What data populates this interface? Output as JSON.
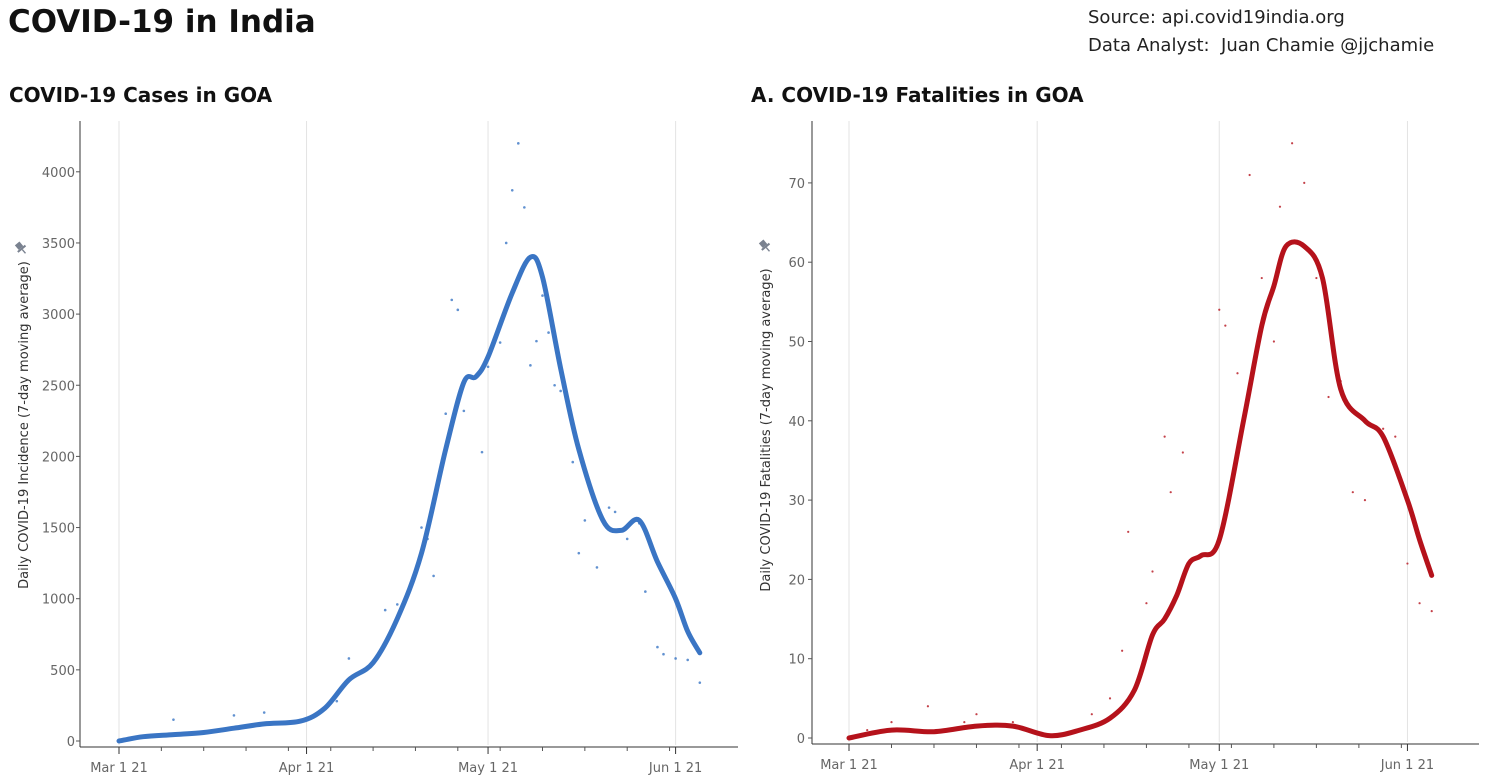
{
  "header": {
    "title": "COVID-19 in India",
    "source_line": "Source: api.covid19india.org",
    "analyst_line": "Data Analyst:  Juan Chamie @jjchamie"
  },
  "colors": {
    "cases": "#3a75c4",
    "fatalities": "#b5121b",
    "grid": "#e3e3e3"
  },
  "chart_data": [
    {
      "type": "line",
      "title": "COVID-19 Cases in GOA",
      "ylabel": "Daily COVID-19 Incidence (7-day moving average)",
      "xlabel": "",
      "x_ticks": [
        "Mar 1 21",
        "Apr 1 21",
        "May 1 21",
        "Jun 1 21"
      ],
      "y_ticks": [
        0,
        500,
        1000,
        1500,
        2000,
        2500,
        3000,
        3500,
        4000
      ],
      "xlim": [
        "2021-03-01",
        "2021-06-06"
      ],
      "ylim": [
        0,
        4300
      ],
      "grid": "vertical",
      "series": [
        {
          "style": "line",
          "x": [
            "2021-03-01",
            "2021-03-05",
            "2021-03-10",
            "2021-03-15",
            "2021-03-20",
            "2021-03-25",
            "2021-03-31",
            "2021-04-04",
            "2021-04-08",
            "2021-04-12",
            "2021-04-16",
            "2021-04-20",
            "2021-04-24",
            "2021-04-27",
            "2021-04-29",
            "2021-05-01",
            "2021-05-05",
            "2021-05-08",
            "2021-05-10",
            "2021-05-13",
            "2021-05-16",
            "2021-05-20",
            "2021-05-23",
            "2021-05-26",
            "2021-05-29",
            "2021-06-01",
            "2021-06-03",
            "2021-06-05"
          ],
          "y": [
            0,
            30,
            45,
            60,
            90,
            120,
            140,
            230,
            430,
            550,
            860,
            1320,
            2050,
            2520,
            2560,
            2700,
            3150,
            3400,
            3260,
            2620,
            2050,
            1550,
            1480,
            1550,
            1260,
            1000,
            770,
            620
          ]
        },
        {
          "style": "points",
          "x": [
            "2021-03-10",
            "2021-03-20",
            "2021-03-25",
            "2021-04-06",
            "2021-04-08",
            "2021-04-12",
            "2021-04-14",
            "2021-04-16",
            "2021-04-20",
            "2021-04-21",
            "2021-04-22",
            "2021-04-24",
            "2021-04-25",
            "2021-04-26",
            "2021-04-27",
            "2021-04-30",
            "2021-05-01",
            "2021-05-03",
            "2021-05-04",
            "2021-05-05",
            "2021-05-06",
            "2021-05-07",
            "2021-05-08",
            "2021-05-09",
            "2021-05-10",
            "2021-05-11",
            "2021-05-12",
            "2021-05-13",
            "2021-05-15",
            "2021-05-16",
            "2021-05-17",
            "2021-05-19",
            "2021-05-21",
            "2021-05-22",
            "2021-05-24",
            "2021-05-26",
            "2021-05-27",
            "2021-05-29",
            "2021-05-30",
            "2021-06-01",
            "2021-06-03",
            "2021-06-05"
          ],
          "y": [
            150,
            180,
            200,
            280,
            580,
            560,
            920,
            960,
            1500,
            1420,
            1160,
            2300,
            3100,
            3030,
            2320,
            2030,
            2630,
            2800,
            3500,
            3870,
            4200,
            3750,
            2640,
            2810,
            3130,
            2870,
            2500,
            2460,
            1960,
            1320,
            1550,
            1220,
            1640,
            1610,
            1420,
            1530,
            1050,
            660,
            610,
            580,
            570,
            410
          ]
        }
      ]
    },
    {
      "type": "line",
      "title": "A. COVID-19 Fatalities in GOA",
      "ylabel": "Daily COVID-19 Fatalities (7-day moving average)",
      "xlabel": "",
      "x_ticks": [
        "Mar 1 21",
        "Apr 1 21",
        "May 1 21",
        "Jun 1 21"
      ],
      "y_ticks": [
        0,
        10,
        20,
        30,
        40,
        50,
        60,
        70
      ],
      "xlim": [
        "2021-03-01",
        "2021-06-06"
      ],
      "ylim": [
        0,
        78
      ],
      "grid": "vertical",
      "series": [
        {
          "style": "line",
          "x": [
            "2021-03-01",
            "2021-03-08",
            "2021-03-15",
            "2021-03-22",
            "2021-03-28",
            "2021-04-03",
            "2021-04-08",
            "2021-04-13",
            "2021-04-17",
            "2021-04-20",
            "2021-04-22",
            "2021-04-24",
            "2021-04-26",
            "2021-04-28",
            "2021-05-01",
            "2021-05-05",
            "2021-05-08",
            "2021-05-10",
            "2021-05-12",
            "2021-05-15",
            "2021-05-18",
            "2021-05-21",
            "2021-05-25",
            "2021-05-28",
            "2021-06-01",
            "2021-06-03",
            "2021-06-05"
          ],
          "y": [
            0,
            1,
            0.8,
            1.5,
            1.5,
            0.3,
            1,
            2.5,
            6,
            13,
            15,
            18,
            22,
            23,
            25,
            40,
            52,
            57,
            62,
            62,
            58,
            44,
            40,
            38,
            30,
            25,
            20.5
          ]
        },
        {
          "style": "points",
          "x": [
            "2021-03-04",
            "2021-03-08",
            "2021-03-14",
            "2021-03-20",
            "2021-03-22",
            "2021-03-28",
            "2021-04-10",
            "2021-04-13",
            "2021-04-15",
            "2021-04-16",
            "2021-04-19",
            "2021-04-20",
            "2021-04-22",
            "2021-04-23",
            "2021-04-25",
            "2021-04-26",
            "2021-05-01",
            "2021-05-02",
            "2021-05-04",
            "2021-05-06",
            "2021-05-08",
            "2021-05-10",
            "2021-05-11",
            "2021-05-13",
            "2021-05-15",
            "2021-05-17",
            "2021-05-19",
            "2021-05-21",
            "2021-05-23",
            "2021-05-25",
            "2021-05-28",
            "2021-05-30",
            "2021-06-01",
            "2021-06-03",
            "2021-06-05"
          ],
          "y": [
            1,
            2,
            4,
            2,
            3,
            2,
            3,
            5,
            11,
            26,
            17,
            21,
            38,
            31,
            36,
            22,
            54,
            52,
            46,
            71,
            58,
            50,
            67,
            75,
            70,
            58,
            43,
            45,
            31,
            30,
            39,
            38,
            22,
            17,
            16
          ]
        }
      ]
    }
  ]
}
